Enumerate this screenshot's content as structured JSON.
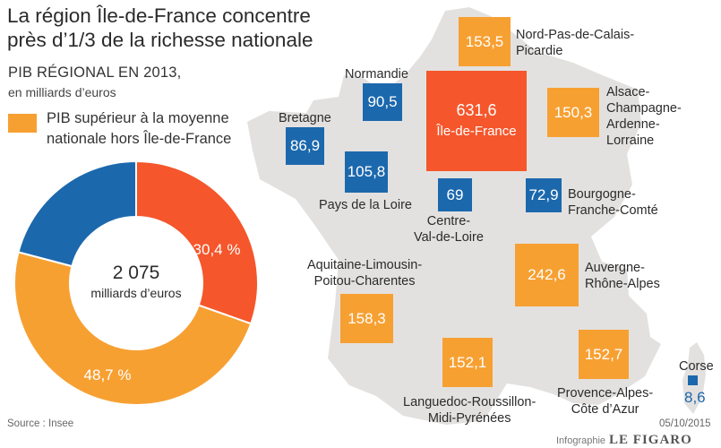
{
  "title_line1": "La région Île-de-France concentre",
  "title_line2": "près d’1/3 de la richesse nationale",
  "subtitle": "PIB RÉGIONAL EN 2013,",
  "unit_note": "en milliards d’euros",
  "legend": {
    "line1": "PIB supérieur à la moyenne",
    "line2": "nationale hors Île-de-France",
    "color": "#f7a032"
  },
  "colors": {
    "orange": "#f7a032",
    "blue": "#1c68ad",
    "red": "#f5562b",
    "map": "#e3e1df"
  },
  "chart_data": [
    {
      "type": "pie",
      "variant": "donut",
      "center_value": "2 075",
      "center_unit": "milliards d’euros",
      "slices": [
        {
          "label": "30,4 %",
          "value": 30.4,
          "color": "#f5562b"
        },
        {
          "label": "48,7 %",
          "value": 48.7,
          "color": "#f7a032"
        },
        {
          "label": "",
          "value": 20.9,
          "color": "#1c68ad"
        }
      ]
    },
    {
      "type": "bar",
      "variant": "proportional-squares-on-map",
      "unit": "milliards d’euros",
      "regions": [
        {
          "name": "Nord-Pas-de-Calais-Picardie",
          "display": "153,5",
          "value": 153.5,
          "category": "orange"
        },
        {
          "name": "Normandie",
          "display": "90,5",
          "value": 90.5,
          "category": "blue"
        },
        {
          "name": "Île-de-France",
          "display": "631,6",
          "value": 631.6,
          "category": "red"
        },
        {
          "name": "Alsace-Champagne-Ardenne-Lorraine",
          "display": "150,3",
          "value": 150.3,
          "category": "orange"
        },
        {
          "name": "Bretagne",
          "display": "86,9",
          "value": 86.9,
          "category": "blue"
        },
        {
          "name": "Pays de la Loire",
          "display": "105,8",
          "value": 105.8,
          "category": "blue"
        },
        {
          "name": "Centre-Val-de-Loire",
          "display": "69",
          "value": 69,
          "category": "blue"
        },
        {
          "name": "Bourgogne-Franche-Comté",
          "display": "72,9",
          "value": 72.9,
          "category": "blue"
        },
        {
          "name": "Aquitaine-Limousin-Poitou-Charentes",
          "display": "158,3",
          "value": 158.3,
          "category": "orange"
        },
        {
          "name": "Auvergne-Rhône-Alpes",
          "display": "242,6",
          "value": 242.6,
          "category": "orange"
        },
        {
          "name": "Languedoc-Roussillon-Midi-Pyrénées",
          "display": "152,1",
          "value": 152.1,
          "category": "orange"
        },
        {
          "name": "Provence-Alpes-Côte d’Azur",
          "display": "152,7",
          "value": 152.7,
          "category": "orange"
        },
        {
          "name": "Corse",
          "display": "8,6",
          "value": 8.6,
          "category": "blue"
        }
      ],
      "labels": {
        "nord": [
          "Nord-Pas-de-Calais-",
          "Picardie"
        ],
        "normandie": [
          "Normandie"
        ],
        "alsace": [
          "Alsace-",
          "Champagne-",
          "Ardenne-",
          "Lorraine"
        ],
        "bretagne": [
          "Bretagne"
        ],
        "pdl": [
          "Pays de la Loire"
        ],
        "centre": [
          "Centre-",
          "Val-de-Loire"
        ],
        "bourgogne": [
          "Bourgogne-",
          "Franche-Comté"
        ],
        "aquitaine": [
          "Aquitaine-Limousin-",
          "Poitou-Charentes"
        ],
        "auvergne": [
          "Auvergne-",
          "Rhône-Alpes"
        ],
        "languedoc": [
          "Languedoc-Roussillon-",
          "Midi-Pyrénées"
        ],
        "paca": [
          "Provence-Alpes-",
          "Côte d’Azur"
        ],
        "corse": [
          "Corse"
        ]
      }
    }
  ],
  "source": "Source : Insee",
  "date": "05/10/2015",
  "credit": {
    "prefix": "Infographie",
    "brand": "LE FIGARO"
  }
}
